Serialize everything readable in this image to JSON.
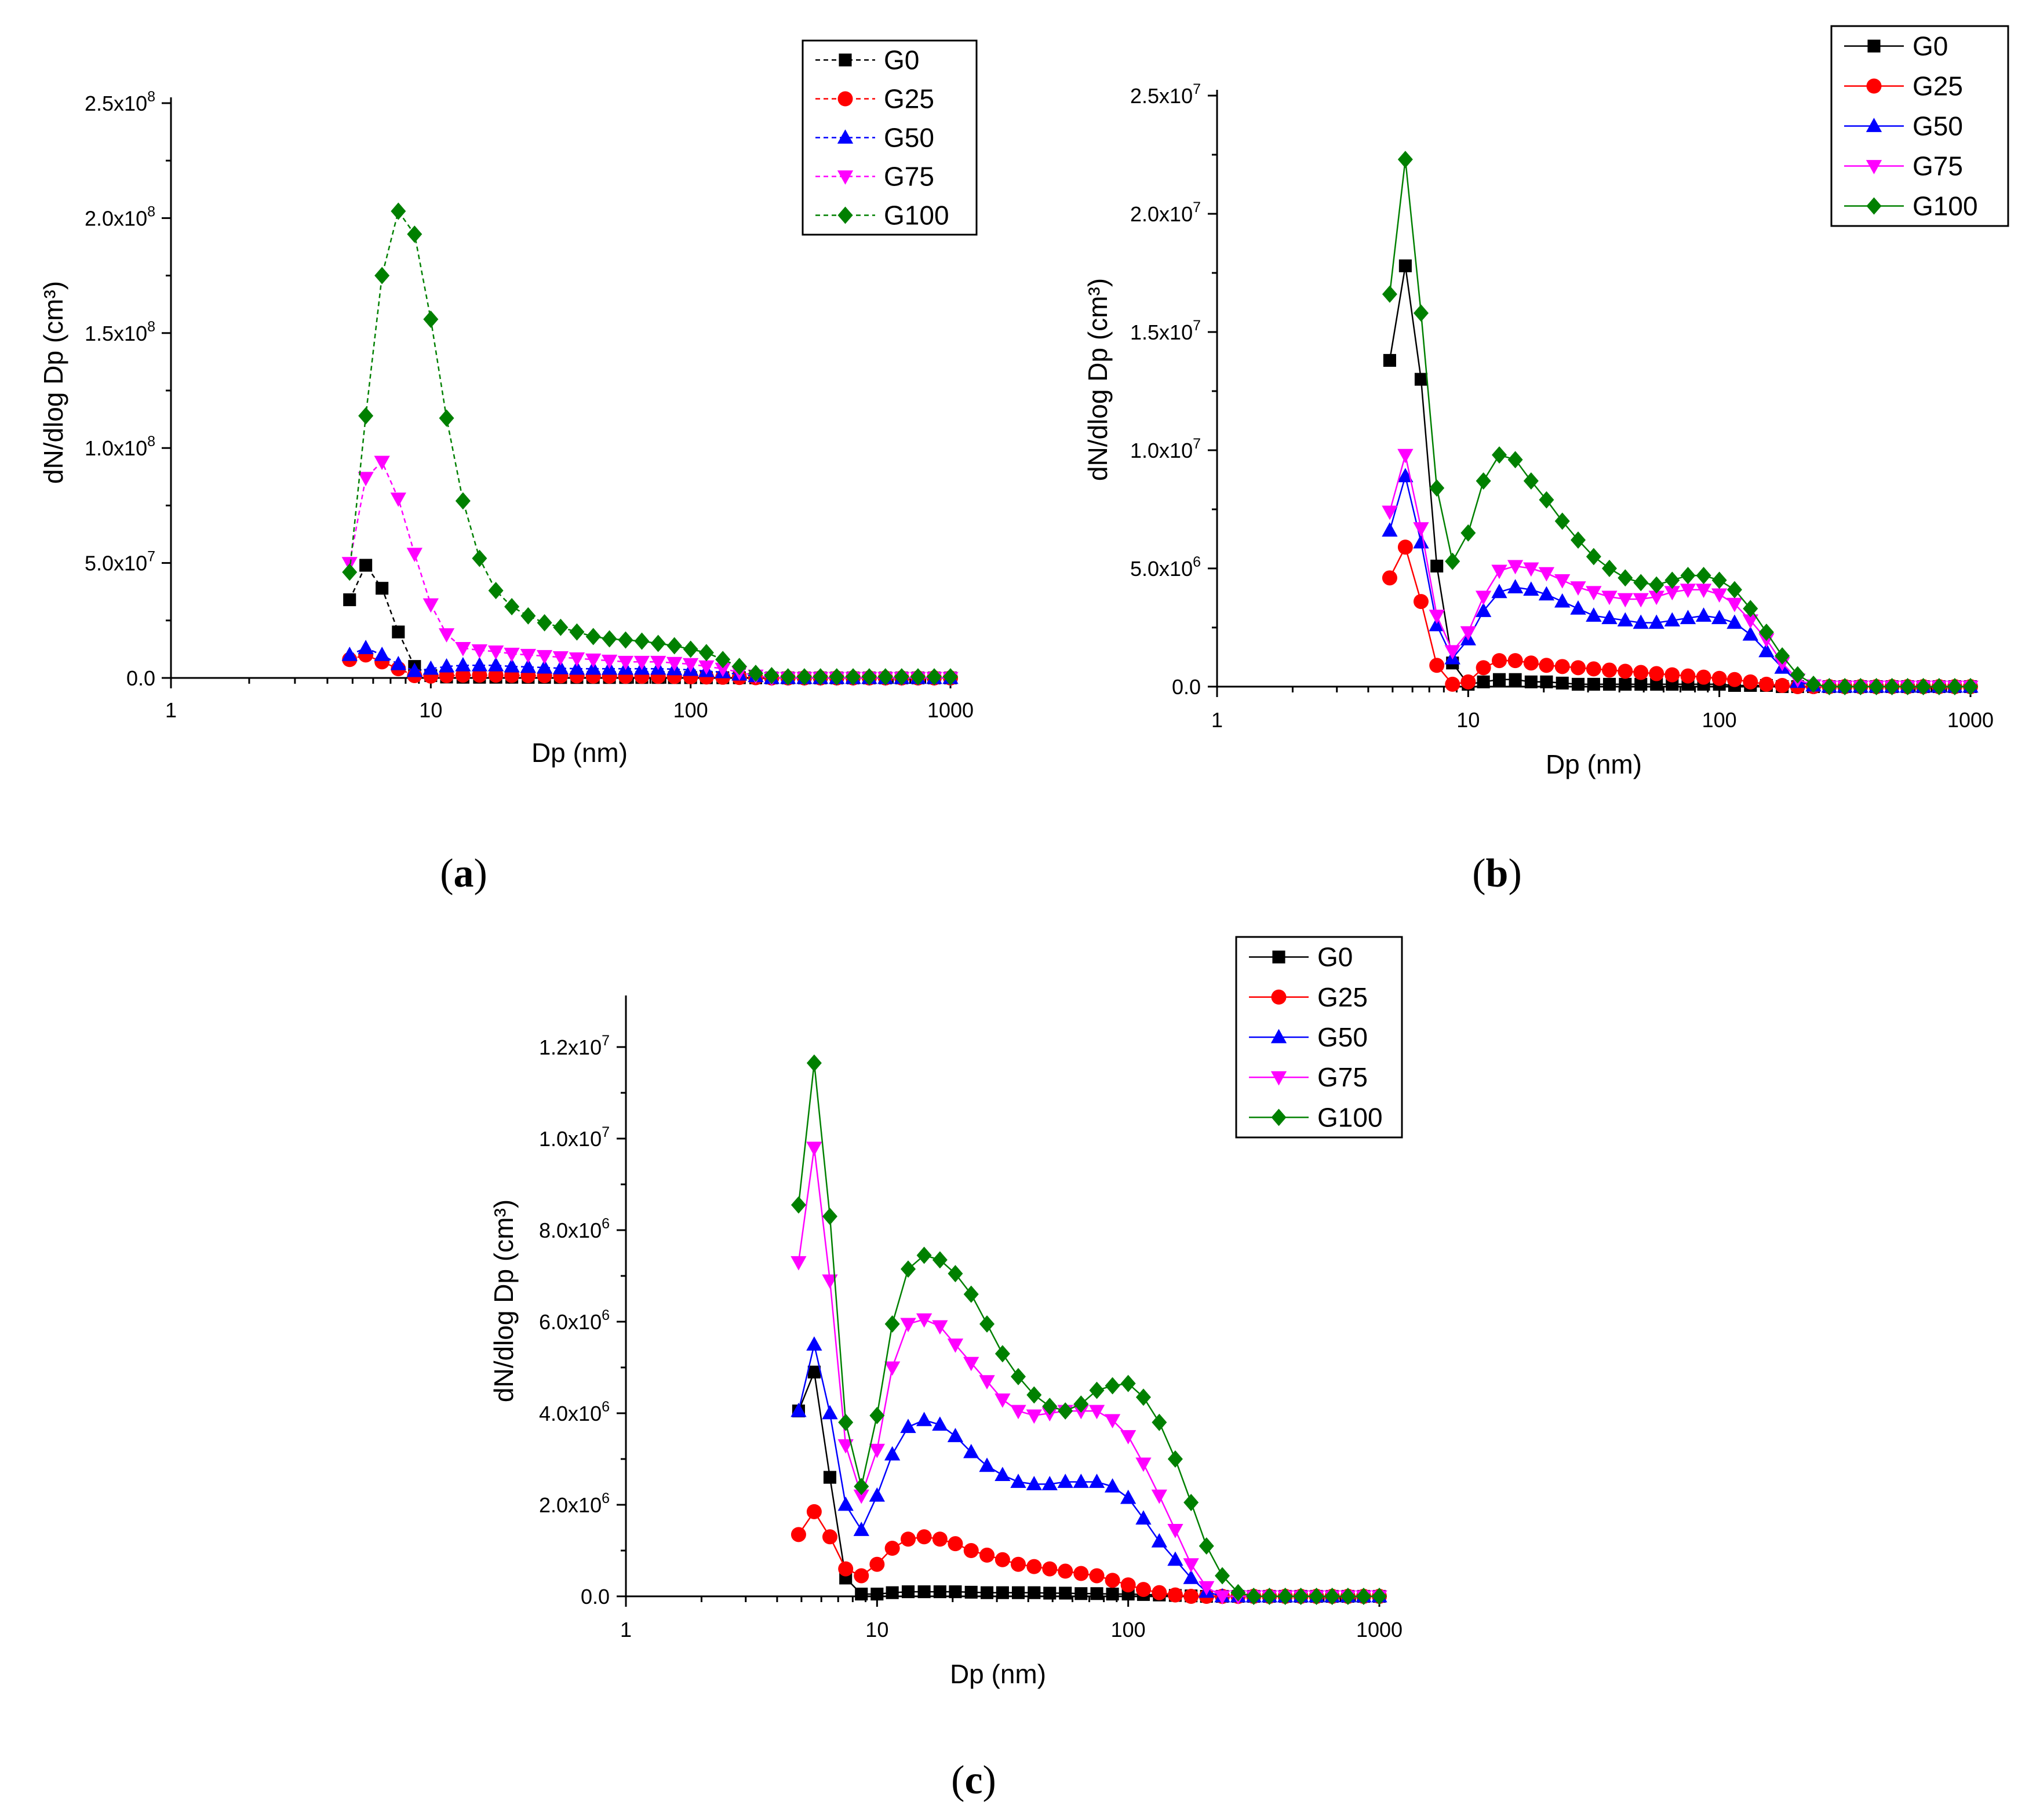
{
  "figure": {
    "captions": [
      "(a)",
      "(b)",
      "(c)"
    ],
    "caption_letters": [
      "a",
      "b",
      "c"
    ]
  },
  "colors": {
    "G0": "#000000",
    "G25": "#ff0000",
    "G50": "#0000ff",
    "G75": "#ff00ff",
    "G100": "#008000"
  },
  "chart_data": [
    {
      "id": "a",
      "type": "scatter",
      "connected": true,
      "dashed": true,
      "xscale": "log",
      "xlim": [
        1,
        1000
      ],
      "ylim": [
        0,
        250000000
      ],
      "xlabel": "Dp (nm)",
      "ylabel": "dN/dlog Dp (cm³)",
      "xticks": [
        1,
        10,
        100,
        1000
      ],
      "xtick_labels": [
        "1",
        "10",
        "100",
        "1000"
      ],
      "yticks": [
        0,
        50000000,
        100000000,
        150000000,
        200000000,
        250000000
      ],
      "ytick_mantissa": [
        "0.0",
        "5.0x10",
        "1.0x10",
        "1.5x10",
        "2.0x10",
        "2.5x10"
      ],
      "ytick_exponent": [
        "",
        "7",
        "8",
        "8",
        "8",
        "8"
      ],
      "legend_position": "top-right",
      "x": [
        4.87,
        5.62,
        6.49,
        7.5,
        8.66,
        10.0,
        11.5,
        13.3,
        15.4,
        17.8,
        20.5,
        23.7,
        27.4,
        31.6,
        36.5,
        42.2,
        48.7,
        56.2,
        64.9,
        75.0,
        86.6,
        100,
        115,
        133,
        154,
        178,
        205,
        237,
        274,
        316,
        365,
        422,
        487,
        562,
        649,
        750,
        866,
        1000
      ],
      "series": [
        {
          "name": "G0",
          "marker": "square",
          "values": [
            34000000,
            49000000,
            39000000,
            20000000,
            5000000,
            1000000,
            400000,
            300000,
            300000,
            300000,
            300000,
            250000,
            250000,
            200000,
            200000,
            200000,
            200000,
            200000,
            200000,
            200000,
            150000,
            150000,
            100000,
            100000,
            100000,
            50000,
            0,
            0,
            0,
            0,
            0,
            0,
            0,
            0,
            0,
            0,
            0,
            0
          ]
        },
        {
          "name": "G25",
          "marker": "circle",
          "values": [
            8000000,
            10000000,
            7000000,
            4000000,
            1000000,
            800000,
            1000000,
            1200000,
            1200000,
            1200000,
            1100000,
            1000000,
            1000000,
            900000,
            900000,
            800000,
            800000,
            700000,
            700000,
            700000,
            600000,
            500000,
            400000,
            300000,
            200000,
            100000,
            0,
            0,
            0,
            0,
            0,
            0,
            0,
            0,
            0,
            0,
            0,
            0
          ]
        },
        {
          "name": "G50",
          "marker": "triangle-up",
          "values": [
            10000000,
            13000000,
            10000000,
            6000000,
            3000000,
            4000000,
            5000000,
            5500000,
            5500000,
            5500000,
            5000000,
            4800000,
            4500000,
            4200000,
            4000000,
            4000000,
            4000000,
            4000000,
            4000000,
            4000000,
            3800000,
            3500000,
            3000000,
            2500000,
            1500000,
            800000,
            0,
            0,
            0,
            0,
            0,
            0,
            0,
            0,
            0,
            0,
            0,
            0
          ]
        },
        {
          "name": "G75",
          "marker": "triangle-down",
          "values": [
            50000000,
            87000000,
            94000000,
            78000000,
            54000000,
            32000000,
            19000000,
            13000000,
            12000000,
            11500000,
            10500000,
            10000000,
            9500000,
            9000000,
            8500000,
            8000000,
            7500000,
            7000000,
            7000000,
            7000000,
            6500000,
            6000000,
            5000000,
            4000000,
            2500000,
            1000000,
            0,
            0,
            0,
            0,
            0,
            0,
            0,
            0,
            0,
            0,
            0,
            0
          ]
        },
        {
          "name": "G100",
          "marker": "diamond",
          "values": [
            46000000,
            114000000,
            175000000,
            203000000,
            193000000,
            156000000,
            113000000,
            77000000,
            52000000,
            38000000,
            31000000,
            27000000,
            24000000,
            22000000,
            20000000,
            18000000,
            17000000,
            16500000,
            16000000,
            15000000,
            14000000,
            12500000,
            11000000,
            8000000,
            5000000,
            2000000,
            1000000,
            500000,
            500000,
            500000,
            500000,
            500000,
            500000,
            500000,
            500000,
            500000,
            500000,
            500000
          ]
        }
      ]
    },
    {
      "id": "b",
      "type": "scatter",
      "connected": true,
      "dashed": false,
      "xscale": "log",
      "xlim": [
        1,
        1000
      ],
      "ylim": [
        0,
        25000000
      ],
      "xlabel": "Dp (nm)",
      "ylabel": "dN/dlog Dp (cm³)",
      "xticks": [
        1,
        10,
        100,
        1000
      ],
      "xtick_labels": [
        "1",
        "10",
        "100",
        "1000"
      ],
      "yticks": [
        0,
        5000000,
        10000000,
        15000000,
        20000000,
        25000000
      ],
      "ytick_mantissa": [
        "0.0",
        "5.0x10",
        "1.0x10",
        "1.5x10",
        "2.0x10",
        "2.5x10"
      ],
      "ytick_exponent": [
        "",
        "6",
        "7",
        "7",
        "7",
        "7"
      ],
      "legend_position": "top-right",
      "x": [
        4.87,
        5.62,
        6.49,
        7.5,
        8.66,
        10.0,
        11.5,
        13.3,
        15.4,
        17.8,
        20.5,
        23.7,
        27.4,
        31.6,
        36.5,
        42.2,
        48.7,
        56.2,
        64.9,
        75.0,
        86.6,
        100,
        115,
        133,
        154,
        178,
        205,
        237,
        274,
        316,
        365,
        422,
        487,
        562,
        649,
        750,
        866,
        1000
      ],
      "series": [
        {
          "name": "G0",
          "marker": "square",
          "values": [
            13800000,
            17800000,
            13000000,
            5100000,
            1000000,
            100000,
            200000,
            300000,
            300000,
            200000,
            200000,
            150000,
            100000,
            100000,
            100000,
            100000,
            100000,
            100000,
            100000,
            100000,
            100000,
            100000,
            50000,
            50000,
            50000,
            0,
            0,
            0,
            0,
            0,
            0,
            0,
            0,
            0,
            0,
            0,
            0,
            0
          ]
        },
        {
          "name": "G25",
          "marker": "circle",
          "values": [
            4600000,
            5900000,
            3600000,
            900000,
            100000,
            200000,
            800000,
            1100000,
            1100000,
            1000000,
            900000,
            850000,
            800000,
            750000,
            700000,
            650000,
            600000,
            550000,
            500000,
            450000,
            400000,
            350000,
            300000,
            200000,
            100000,
            50000,
            0,
            0,
            0,
            0,
            0,
            0,
            0,
            0,
            0,
            0,
            0,
            0
          ]
        },
        {
          "name": "G50",
          "marker": "triangle-up",
          "values": [
            6600000,
            8900000,
            6100000,
            2600000,
            1200000,
            2000000,
            3200000,
            4000000,
            4200000,
            4100000,
            3900000,
            3600000,
            3300000,
            3000000,
            2900000,
            2800000,
            2700000,
            2700000,
            2800000,
            2900000,
            3000000,
            2900000,
            2700000,
            2200000,
            1500000,
            800000,
            200000,
            50000,
            0,
            0,
            0,
            0,
            0,
            0,
            0,
            0,
            0,
            0
          ]
        },
        {
          "name": "G75",
          "marker": "triangle-down",
          "values": [
            7400000,
            9800000,
            6700000,
            3000000,
            1500000,
            2300000,
            3800000,
            4900000,
            5100000,
            5000000,
            4800000,
            4500000,
            4200000,
            4000000,
            3800000,
            3700000,
            3700000,
            3800000,
            4000000,
            4100000,
            4100000,
            3900000,
            3500000,
            2800000,
            2000000,
            1000000,
            300000,
            50000,
            0,
            0,
            0,
            0,
            0,
            0,
            0,
            0,
            0,
            0
          ]
        },
        {
          "name": "G100",
          "marker": "diamond",
          "values": [
            16600000,
            22300000,
            15800000,
            8400000,
            5300000,
            6500000,
            8700000,
            9800000,
            9600000,
            8700000,
            7900000,
            7000000,
            6200000,
            5500000,
            5000000,
            4600000,
            4400000,
            4300000,
            4500000,
            4700000,
            4700000,
            4500000,
            4100000,
            3300000,
            2300000,
            1300000,
            500000,
            100000,
            0,
            0,
            0,
            0,
            0,
            0,
            0,
            0,
            0,
            0
          ]
        }
      ]
    },
    {
      "id": "c",
      "type": "scatter",
      "connected": true,
      "dashed": false,
      "xscale": "log",
      "xlim": [
        1,
        1000
      ],
      "ylim": [
        0,
        13000000
      ],
      "xlabel": "Dp (nm)",
      "ylabel": "dN/dlog Dp (cm³)",
      "xticks": [
        1,
        10,
        100,
        1000
      ],
      "xtick_labels": [
        "1",
        "10",
        "100",
        "1000"
      ],
      "yticks": [
        0,
        2000000,
        4000000,
        6000000,
        8000000,
        10000000,
        12000000
      ],
      "ytick_mantissa": [
        "0.0",
        "2.0x10",
        "4.0x10",
        "6.0x10",
        "8.0x10",
        "1.0x10",
        "1.2x10"
      ],
      "ytick_exponent": [
        "",
        "6",
        "6",
        "6",
        "6",
        "7",
        "7"
      ],
      "legend_position": "top-right",
      "x": [
        4.87,
        5.62,
        6.49,
        7.5,
        8.66,
        10.0,
        11.5,
        13.3,
        15.4,
        17.8,
        20.5,
        23.7,
        27.4,
        31.6,
        36.5,
        42.2,
        48.7,
        56.2,
        64.9,
        75.0,
        86.6,
        100,
        115,
        133,
        154,
        178,
        205,
        237,
        274,
        316,
        365,
        422,
        487,
        562,
        649,
        750,
        866,
        1000
      ],
      "series": [
        {
          "name": "G0",
          "marker": "square",
          "values": [
            4050000,
            4900000,
            2600000,
            400000,
            50000,
            50000,
            80000,
            100000,
            100000,
            100000,
            100000,
            90000,
            80000,
            80000,
            80000,
            80000,
            70000,
            70000,
            60000,
            60000,
            50000,
            50000,
            40000,
            30000,
            20000,
            10000,
            0,
            0,
            0,
            0,
            0,
            0,
            0,
            0,
            0,
            0,
            0,
            0
          ]
        },
        {
          "name": "G25",
          "marker": "circle",
          "values": [
            1350000,
            1850000,
            1300000,
            600000,
            450000,
            700000,
            1050000,
            1250000,
            1300000,
            1250000,
            1150000,
            1000000,
            900000,
            800000,
            700000,
            650000,
            600000,
            550000,
            500000,
            450000,
            350000,
            250000,
            150000,
            80000,
            30000,
            0,
            0,
            0,
            0,
            0,
            0,
            0,
            0,
            0,
            0,
            0,
            0,
            0
          ]
        },
        {
          "name": "G50",
          "marker": "triangle-up",
          "values": [
            4050000,
            5500000,
            4000000,
            2000000,
            1450000,
            2200000,
            3100000,
            3700000,
            3850000,
            3750000,
            3500000,
            3150000,
            2850000,
            2650000,
            2500000,
            2450000,
            2450000,
            2500000,
            2500000,
            2500000,
            2400000,
            2150000,
            1700000,
            1200000,
            800000,
            400000,
            100000,
            0,
            0,
            0,
            0,
            0,
            0,
            0,
            0,
            0,
            0,
            0
          ]
        },
        {
          "name": "G75",
          "marker": "triangle-down",
          "values": [
            7300000,
            9800000,
            6900000,
            3300000,
            2200000,
            3200000,
            5000000,
            5950000,
            6050000,
            5900000,
            5500000,
            5100000,
            4700000,
            4300000,
            4050000,
            3950000,
            4000000,
            4050000,
            4050000,
            4050000,
            3850000,
            3500000,
            2900000,
            2200000,
            1450000,
            700000,
            200000,
            0,
            0,
            0,
            0,
            0,
            0,
            0,
            0,
            0,
            0,
            0
          ]
        },
        {
          "name": "G100",
          "marker": "diamond",
          "values": [
            8550000,
            11650000,
            8300000,
            3800000,
            2400000,
            3950000,
            5950000,
            7150000,
            7450000,
            7350000,
            7050000,
            6600000,
            5950000,
            5300000,
            4800000,
            4400000,
            4150000,
            4050000,
            4200000,
            4500000,
            4600000,
            4650000,
            4350000,
            3800000,
            3000000,
            2050000,
            1100000,
            450000,
            80000,
            0,
            0,
            0,
            0,
            0,
            0,
            0,
            0,
            0
          ]
        }
      ]
    }
  ]
}
